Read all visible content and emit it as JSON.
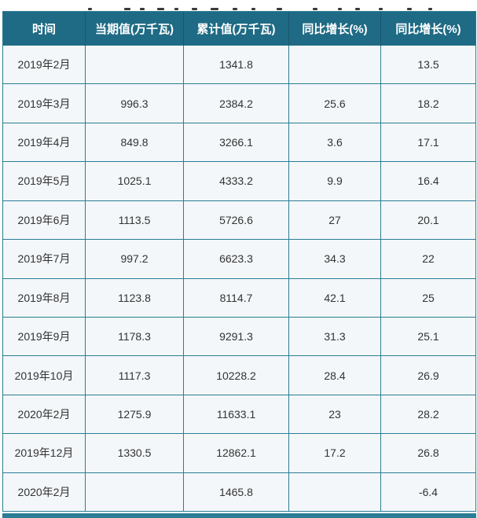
{
  "table": {
    "headers": [
      "时间",
      "当期值(万千瓦)",
      "累计值(万千瓦)",
      "同比增长(%)",
      "同比增长(%)"
    ],
    "rows": [
      [
        "2019年2月",
        "",
        "1341.8",
        "",
        "13.5"
      ],
      [
        "2019年3月",
        "996.3",
        "2384.2",
        "25.6",
        "18.2"
      ],
      [
        "2019年4月",
        "849.8",
        "3266.1",
        "3.6",
        "17.1"
      ],
      [
        "2019年5月",
        "1025.1",
        "4333.2",
        "9.9",
        "16.4"
      ],
      [
        "2019年6月",
        "1113.5",
        "5726.6",
        "27",
        "20.1"
      ],
      [
        "2019年7月",
        "997.2",
        "6623.3",
        "34.3",
        "22"
      ],
      [
        "2019年8月",
        "1123.8",
        "8114.7",
        "42.1",
        "25"
      ],
      [
        "2019年9月",
        "1178.3",
        "9291.3",
        "31.3",
        "25.1"
      ],
      [
        "2019年10月",
        "1117.3",
        "10228.2",
        "28.4",
        "26.9"
      ],
      [
        "2020年2月",
        "1275.9",
        "11633.1",
        "23",
        "28.2"
      ],
      [
        "2019年12月",
        "1330.5",
        "12862.1",
        "17.2",
        "26.8"
      ],
      [
        "2020年2月",
        "",
        "1465.8",
        "",
        "-6.4"
      ]
    ]
  },
  "chart_data": {
    "type": "table",
    "columns": [
      "时间",
      "当期值(万千瓦)",
      "累计值(万千瓦)",
      "同比增长(%)",
      "同比增长(%)"
    ],
    "rows": [
      {
        "时间": "2019年2月",
        "当期值": null,
        "累计值": 1341.8,
        "同比增长_当期": null,
        "同比增长_累计": 13.5
      },
      {
        "时间": "2019年3月",
        "当期值": 996.3,
        "累计值": 2384.2,
        "同比增长_当期": 25.6,
        "同比增长_累计": 18.2
      },
      {
        "时间": "2019年4月",
        "当期值": 849.8,
        "累计值": 3266.1,
        "同比增长_当期": 3.6,
        "同比增长_累计": 17.1
      },
      {
        "时间": "2019年5月",
        "当期值": 1025.1,
        "累计值": 4333.2,
        "同比增长_当期": 9.9,
        "同比增长_累计": 16.4
      },
      {
        "时间": "2019年6月",
        "当期值": 1113.5,
        "累计值": 5726.6,
        "同比增长_当期": 27,
        "同比增长_累计": 20.1
      },
      {
        "时间": "2019年7月",
        "当期值": 997.2,
        "累计值": 6623.3,
        "同比增长_当期": 34.3,
        "同比增长_累计": 22
      },
      {
        "时间": "2019年8月",
        "当期值": 1123.8,
        "累计值": 8114.7,
        "同比增长_当期": 42.1,
        "同比增长_累计": 25
      },
      {
        "时间": "2019年9月",
        "当期值": 1178.3,
        "累计值": 9291.3,
        "同比增长_当期": 31.3,
        "同比增长_累计": 25.1
      },
      {
        "时间": "2019年10月",
        "当期值": 1117.3,
        "累计值": 10228.2,
        "同比增长_当期": 28.4,
        "同比增长_累计": 26.9
      },
      {
        "时间": "2020年2月",
        "当期值": 1275.9,
        "累计值": 11633.1,
        "同比增长_当期": 23,
        "同比增长_累计": 28.2
      },
      {
        "时间": "2019年12月",
        "当期值": 1330.5,
        "累计值": 12862.1,
        "同比增长_当期": 17.2,
        "同比增长_累计": 26.8
      },
      {
        "时间": "2020年2月",
        "当期值": null,
        "累计值": 1465.8,
        "同比增长_当期": null,
        "同比增长_累计": -6.4
      }
    ]
  },
  "colors": {
    "header_bg": "#1f6b85",
    "border": "#2b7d95",
    "cell_bg": "#f3f7fa",
    "footer_bar": "#2a7d95",
    "header_text": "#ffffff",
    "body_text": "#333333"
  }
}
